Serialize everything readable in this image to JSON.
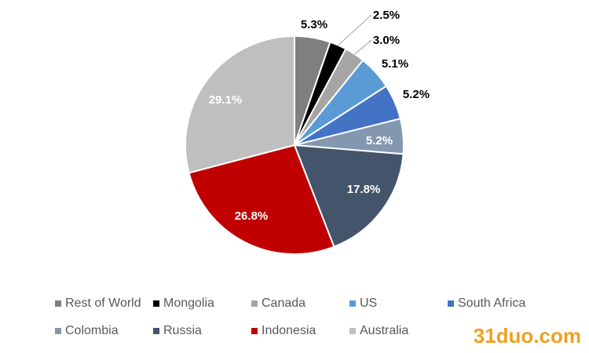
{
  "chart_data": {
    "type": "pie",
    "categories": [
      "Rest of World",
      "Mongolia",
      "Canada",
      "US",
      "South Africa",
      "Colombia",
      "Russia",
      "Indonesia",
      "Australia"
    ],
    "values": [
      5.3,
      2.5,
      3.0,
      5.1,
      5.2,
      5.2,
      17.8,
      26.8,
      29.1
    ],
    "value_labels": [
      "5.3%",
      "2.5%",
      "3.0%",
      "5.1%",
      "5.2%",
      "5.2%",
      "17.8%",
      "26.8%",
      "29.1%"
    ],
    "colors": [
      "#7f7f7f",
      "#000000",
      "#a5a5a5",
      "#5b9bd5",
      "#4472c4",
      "#8497b0",
      "#44546a",
      "#c00000",
      "#bfbfbf"
    ],
    "legend": "bottom"
  },
  "watermark": "31duo.com"
}
